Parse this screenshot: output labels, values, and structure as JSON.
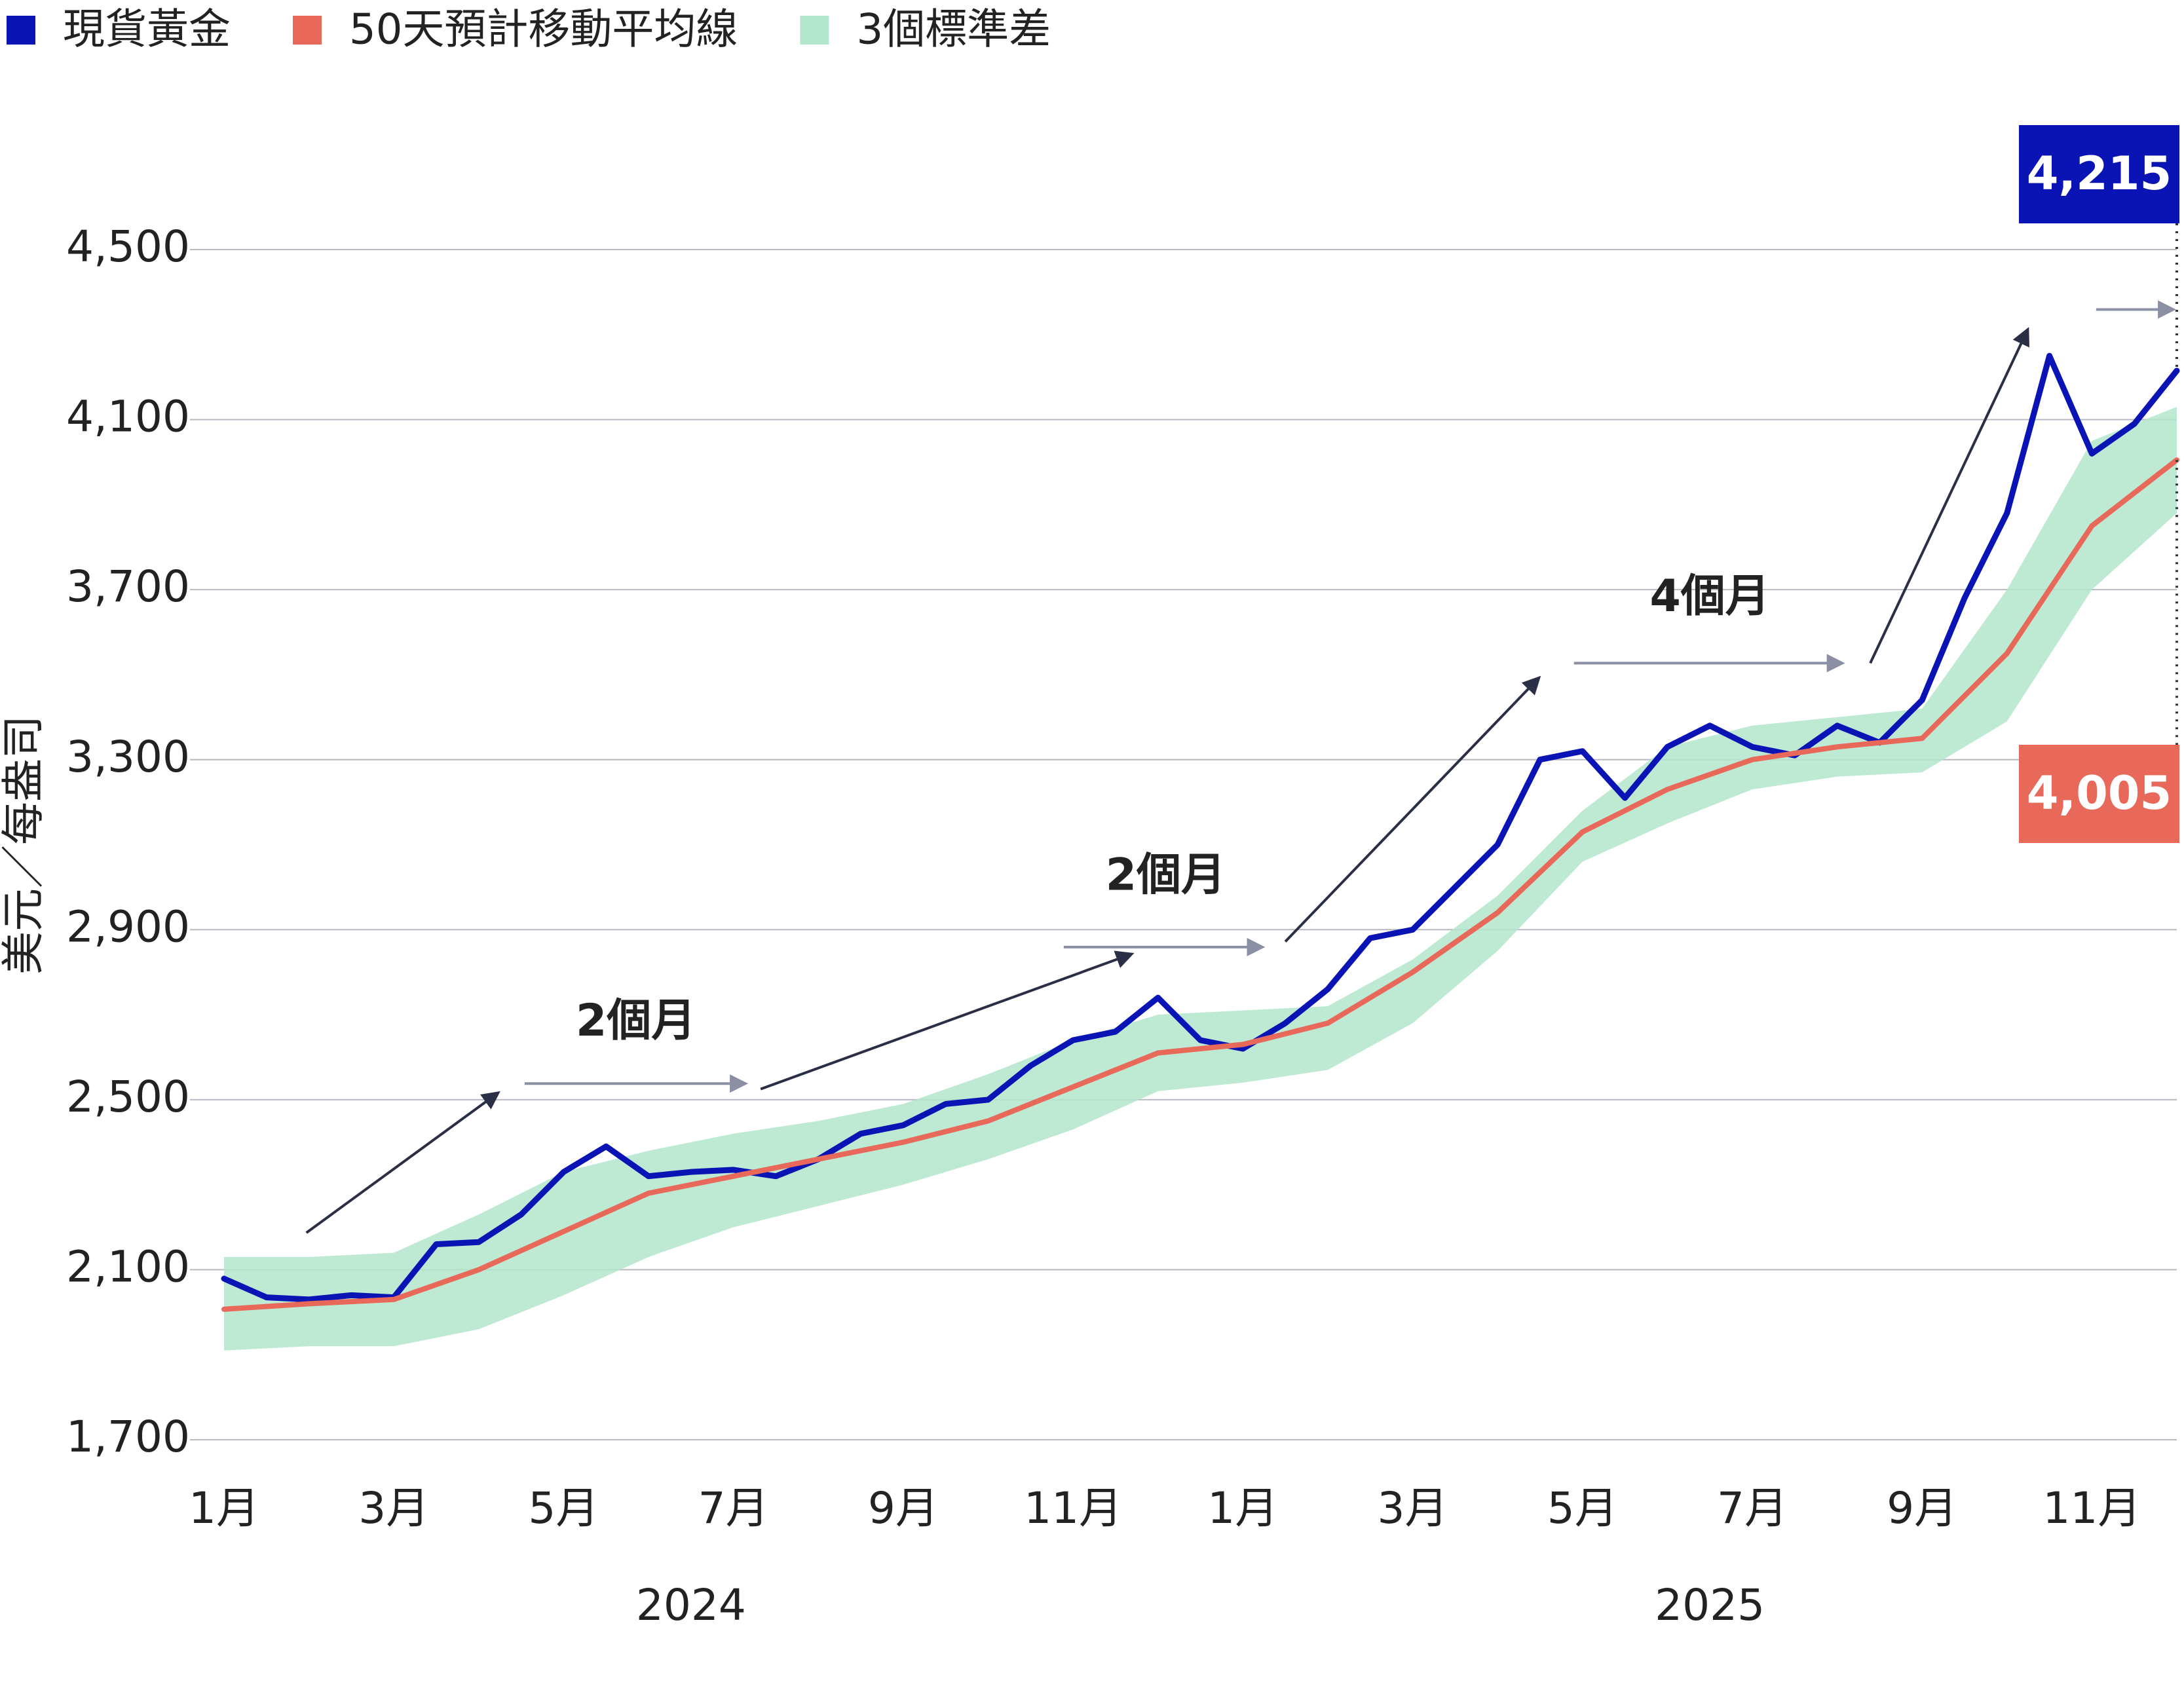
{
  "chart_data": {
    "type": "line",
    "y_label": "美元／每盎司",
    "xlim": [
      0,
      23
    ],
    "xticks": [
      {
        "value": 0,
        "label": "1月"
      },
      {
        "value": 2,
        "label": "3月"
      },
      {
        "value": 4,
        "label": "5月"
      },
      {
        "value": 6,
        "label": "7月"
      },
      {
        "value": 8,
        "label": "9月"
      },
      {
        "value": 10,
        "label": "11月"
      },
      {
        "value": 12,
        "label": "1月"
      },
      {
        "value": 14,
        "label": "3月"
      },
      {
        "value": 16,
        "label": "5月"
      },
      {
        "value": 18,
        "label": "7月"
      },
      {
        "value": 20,
        "label": "9月"
      },
      {
        "value": 22,
        "label": "11月"
      }
    ],
    "x_groups": [
      {
        "label": "2024",
        "from": 0,
        "to": 12
      },
      {
        "label": "2025",
        "from": 12,
        "to": 24
      }
    ],
    "ylim": [
      1700,
      4500
    ],
    "yticks": [
      {
        "value": 1700,
        "label": "1,700"
      },
      {
        "value": 2100,
        "label": "2,100"
      },
      {
        "value": 2500,
        "label": "2,500"
      },
      {
        "value": 2900,
        "label": "2,900"
      },
      {
        "value": 3300,
        "label": "3,300"
      },
      {
        "value": 3700,
        "label": "3,700"
      },
      {
        "value": 4100,
        "label": "4,100"
      },
      {
        "value": 4500,
        "label": "4,500"
      }
    ],
    "grid": true,
    "legend": "top-left",
    "series": [
      {
        "name": "現貨黃金",
        "color": "#0a14b4",
        "kind": "line",
        "end_label": "4,215",
        "x": [
          0,
          0.5,
          1,
          1.5,
          2,
          2.5,
          3,
          3.5,
          4,
          4.5,
          5,
          5.5,
          6,
          6.5,
          7,
          7.5,
          8,
          8.5,
          9,
          9.5,
          10,
          10.5,
          11,
          11.5,
          12,
          12.5,
          13,
          13.5,
          14,
          14.5,
          15,
          15.5,
          16,
          16.5,
          17,
          17.5,
          18,
          18.5,
          19,
          19.5,
          20,
          20.5,
          21,
          21.5,
          22,
          22.5,
          23
        ],
        "values": [
          2079,
          2035,
          2030,
          2040,
          2035,
          2160,
          2165,
          2230,
          2330,
          2390,
          2320,
          2330,
          2335,
          2320,
          2360,
          2420,
          2440,
          2490,
          2500,
          2580,
          2640,
          2660,
          2740,
          2640,
          2620,
          2680,
          2760,
          2880,
          2900,
          3000,
          3100,
          3300,
          3320,
          3210,
          3330,
          3380,
          3330,
          3310,
          3380,
          3340,
          3440,
          3680,
          3880,
          4250,
          4020,
          4090,
          4215
        ]
      },
      {
        "name": "50天預計移動平均線",
        "color": "#e8685a",
        "kind": "line",
        "end_label": "4,005",
        "x": [
          0,
          1,
          2,
          3,
          4,
          5,
          6,
          7,
          8,
          9,
          10,
          11,
          12,
          13,
          14,
          15,
          16,
          17,
          18,
          19,
          20,
          21,
          22,
          23
        ],
        "values": [
          2007,
          2020,
          2030,
          2100,
          2190,
          2280,
          2320,
          2360,
          2400,
          2450,
          2530,
          2610,
          2630,
          2680,
          2800,
          2940,
          3130,
          3230,
          3300,
          3330,
          3350,
          3550,
          3850,
          4005
        ]
      },
      {
        "name": "3個標準差",
        "color": "#b3e6cc",
        "kind": "band",
        "x": [
          0,
          1,
          2,
          3,
          4,
          5,
          6,
          7,
          8,
          9,
          10,
          11,
          12,
          13,
          14,
          15,
          16,
          17,
          18,
          19,
          20,
          21,
          22,
          23
        ],
        "upper": [
          2130,
          2130,
          2140,
          2230,
          2330,
          2380,
          2420,
          2450,
          2490,
          2560,
          2640,
          2700,
          2710,
          2720,
          2830,
          2980,
          3180,
          3330,
          3380,
          3400,
          3420,
          3700,
          4050,
          4130
        ],
        "lower": [
          1910,
          1920,
          1920,
          1960,
          2040,
          2130,
          2200,
          2250,
          2300,
          2360,
          2430,
          2520,
          2540,
          2570,
          2680,
          2850,
          3060,
          3150,
          3230,
          3260,
          3270,
          3390,
          3700,
          3880
        ]
      }
    ],
    "annotations": [
      {
        "text": "2個月",
        "x": 4.85,
        "y": 2679
      },
      {
        "text": "2個月",
        "x": 11.09,
        "y": 3022
      },
      {
        "text": "4個月",
        "x": 17.5,
        "y": 3678
      }
    ],
    "arrows": [
      {
        "from": [
          0.97,
          2187
        ],
        "to": [
          3.22,
          2515
        ]
      },
      {
        "from": [
          3.54,
          2538
        ],
        "to": [
          6.13,
          2538
        ]
      },
      {
        "from": [
          6.32,
          2525
        ],
        "to": [
          10.68,
          2842
        ]
      },
      {
        "from": [
          9.89,
          2859
        ],
        "to": [
          12.22,
          2859
        ]
      },
      {
        "from": [
          12.5,
          2872
        ],
        "to": [
          15.48,
          3491
        ]
      },
      {
        "from": [
          15.9,
          3527
        ],
        "to": [
          19.05,
          3527
        ]
      },
      {
        "from": [
          19.39,
          3527
        ],
        "to": [
          21.24,
          4310
        ]
      },
      {
        "from": [
          22.05,
          4359
        ],
        "to": [
          22.95,
          4359
        ]
      }
    ]
  }
}
